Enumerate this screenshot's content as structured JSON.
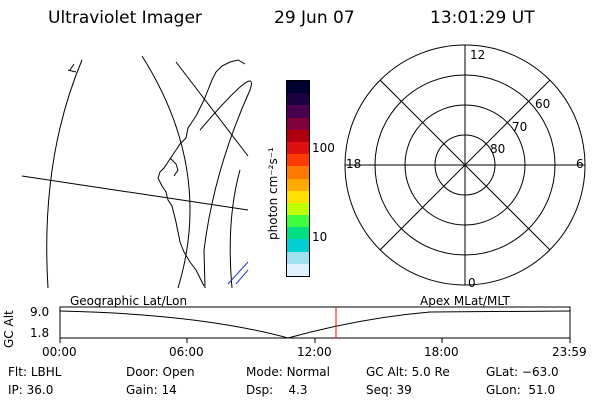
{
  "header": {
    "title": "Ultraviolet Imager",
    "date": "29 Jun 07",
    "time": "13:01:29 UT"
  },
  "colorbar": {
    "unit_label": "photon cm⁻²s⁻¹",
    "ticks": [
      "100",
      "10"
    ],
    "colors": [
      "#000030",
      "#1a0040",
      "#4a0050",
      "#80003a",
      "#b00010",
      "#e01010",
      "#ff3a00",
      "#ff7a00",
      "#ffaa00",
      "#ffe000",
      "#c0ff00",
      "#40ff40",
      "#00e080",
      "#00d0d0",
      "#a0e0f0",
      "#e0f0ff"
    ]
  },
  "polar": {
    "labels": [
      "12",
      "18",
      "6",
      "0",
      "60",
      "70",
      "80"
    ]
  },
  "timeline": {
    "left_label": "Geographic Lat/Lon",
    "right_label": "Apex MLat/MLT",
    "axis_label": "GC Alt",
    "y_ticks": [
      "9.0",
      "1.8"
    ],
    "x_ticks": [
      "00:00",
      "06:00",
      "12:00",
      "18:00",
      "23:59"
    ],
    "marker_time": "13:01",
    "marker_color": "#ff0000"
  },
  "info": {
    "row1": [
      {
        "label": "Flt:",
        "value": "LBHL"
      },
      {
        "label": "Door:",
        "value": "Open"
      },
      {
        "label": "Mode:",
        "value": "Normal"
      },
      {
        "label": "GC Alt:",
        "value": "5.0 Re"
      },
      {
        "label": "GLat:",
        "value": "−63.0"
      }
    ],
    "row2": [
      {
        "label": "IP:",
        "value": "36.0"
      },
      {
        "label": "Gain:",
        "value": "14"
      },
      {
        "label": "Dsp:",
        "value": "4.3"
      },
      {
        "label": "Seq:",
        "value": "39"
      },
      {
        "label": "GLon:",
        "value": "51.0"
      }
    ]
  }
}
